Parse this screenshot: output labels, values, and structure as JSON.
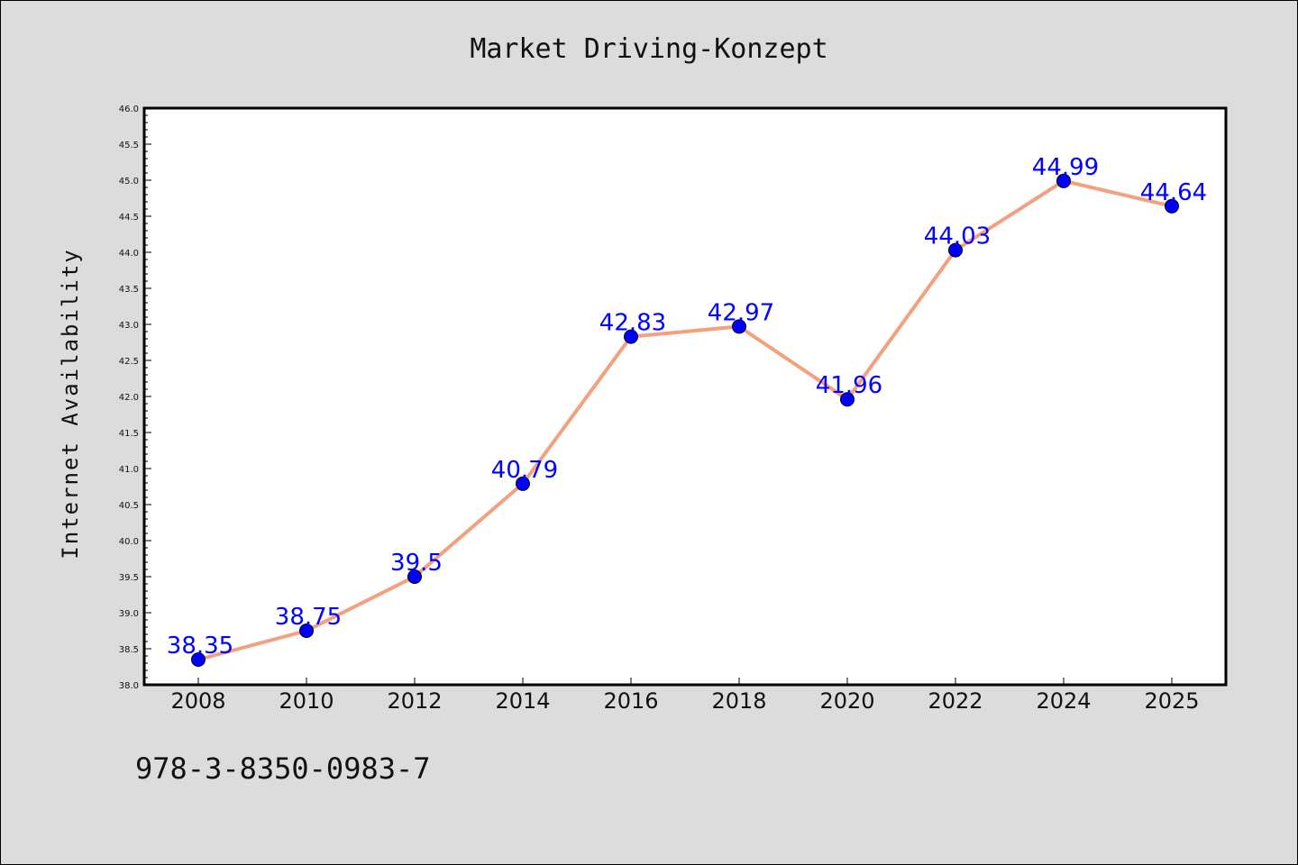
{
  "chart_data": {
    "type": "line",
    "title": "Market Driving-Konzept",
    "xlabel": "",
    "ylabel": "Internet Availability",
    "categories": [
      "2008",
      "2010",
      "2012",
      "2014",
      "2016",
      "2018",
      "2020",
      "2022",
      "2024",
      "2025"
    ],
    "series": [
      {
        "values": [
          38.35,
          38.75,
          39.5,
          40.79,
          42.83,
          42.97,
          41.96,
          44.03,
          44.99,
          44.64
        ],
        "labels": [
          "38.35",
          "38.75",
          "39.5",
          "40.79",
          "42.83",
          "42.97",
          "41.96",
          "44.03",
          "44.99",
          "44.64"
        ]
      }
    ],
    "ylim": [
      38.0,
      46.0
    ],
    "yticks": [
      "38.0",
      "38.5",
      "39.0",
      "39.5",
      "40.0",
      "40.5",
      "41.0",
      "41.5",
      "42.0",
      "42.5",
      "43.0",
      "43.5",
      "44.0",
      "44.5",
      "45.0",
      "45.5",
      "46.0"
    ],
    "grid": false,
    "legend": "none",
    "colors": {
      "line": "#f4a07f",
      "marker": "#0000ff",
      "label": "#0000ff",
      "background": "#dcdcdc",
      "plot_background": "#ffffff"
    }
  },
  "footer": {
    "text": "978-3-8350-0983-7"
  }
}
